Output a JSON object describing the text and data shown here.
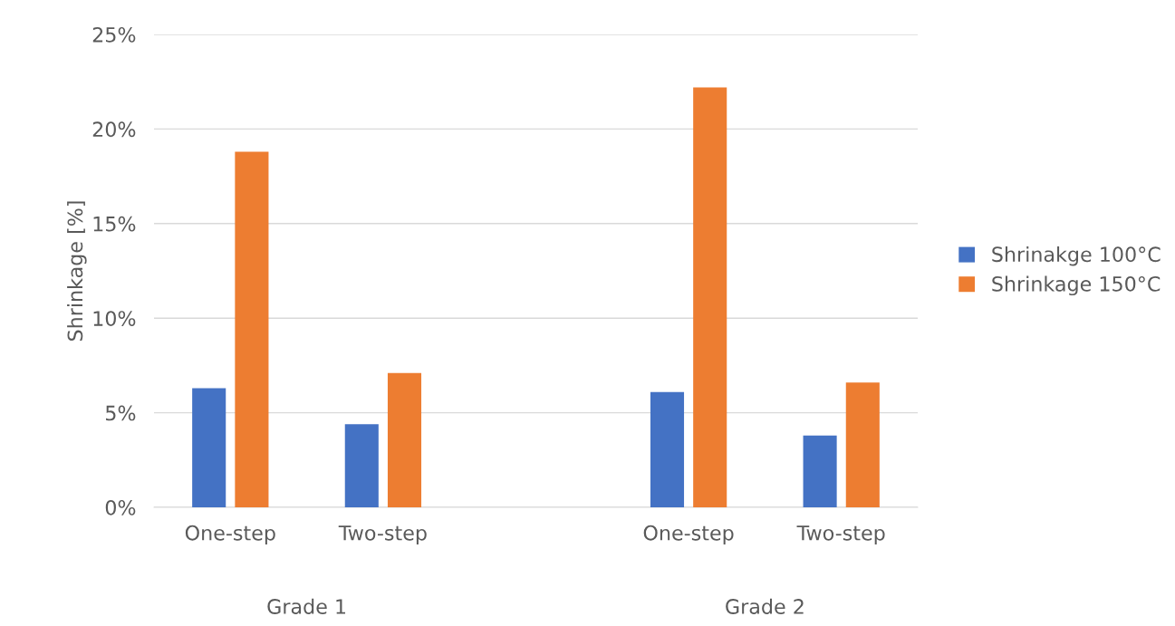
{
  "chart_data": {
    "type": "bar",
    "ylabel": "Shrinkage [%]",
    "categories": [
      "One-step",
      "Two-step",
      null,
      "One-step",
      "Two-step"
    ],
    "series": [
      {
        "name": "Shrinakge 100°C",
        "color": "#4472c4",
        "values": [
          6.3,
          4.4,
          null,
          6.1,
          3.8
        ]
      },
      {
        "name": "Shrinkage 150°C",
        "color": "#ed7d31",
        "values": [
          18.8,
          7.1,
          null,
          22.2,
          6.6
        ]
      }
    ],
    "ylim": [
      0,
      25
    ],
    "yticks": [
      {
        "value": 0,
        "label": "0%"
      },
      {
        "value": 5,
        "label": "5%"
      },
      {
        "value": 10,
        "label": "10%"
      },
      {
        "value": 15,
        "label": "15%"
      },
      {
        "value": 20,
        "label": "20%"
      },
      {
        "value": 25,
        "label": "25%"
      }
    ],
    "annotations": [
      "Grade 1",
      "Grade 2"
    ],
    "grid": "y",
    "legend": "right"
  }
}
